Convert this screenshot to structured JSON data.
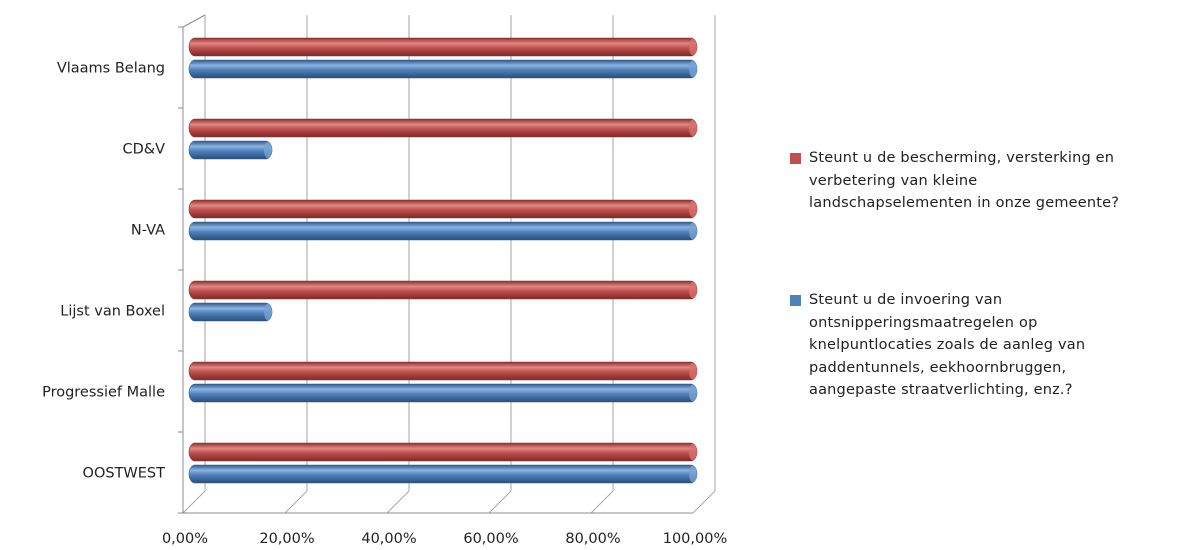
{
  "chart_data": {
    "type": "bar",
    "orientation": "horizontal",
    "categories": [
      "Vlaams Belang",
      "CD&V",
      "N-VA",
      "Lijst van Boxel",
      "Progressief Malle",
      "OOSTWEST"
    ],
    "series": [
      {
        "name": "Steunt u de bescherming, versterking en verbetering van kleine landschapselementen in onze gemeente?",
        "color": "#c0504d",
        "values": [
          100,
          100,
          100,
          100,
          100,
          100
        ]
      },
      {
        "name": "Steunt u de invoering van ontsnipperingsmaatregelen op knelpuntlocaties zoals de aanleg van paddentunnels, eekhoornbruggen, aangepaste straatverlichting, enz.?",
        "color": "#4f81bd",
        "values": [
          100,
          16.67,
          100,
          16.67,
          100,
          100
        ]
      }
    ],
    "xlim": [
      0,
      100
    ],
    "x_ticks": [
      0,
      20,
      40,
      60,
      80,
      100
    ],
    "x_tick_labels": [
      "0,00%",
      "20,00%",
      "40,00%",
      "60,00%",
      "80,00%",
      "100,00%"
    ],
    "gridlines": true,
    "legend_position": "right",
    "style": "3d-cylinder"
  },
  "legend": {
    "items": [
      {
        "lines": [
          "Steunt u de bescherming, versterking en",
          "verbetering van kleine",
          "landschapselementen in onze gemeente?"
        ],
        "color": "#c0504d"
      },
      {
        "lines": [
          "Steunt u de invoering van",
          "ontsnipperingsmaatregelen op",
          "knelpuntlocaties zoals de aanleg van",
          "paddentunnels, eekhoornbruggen,",
          "aangepaste straatverlichting, enz.?"
        ],
        "color": "#4f81bd"
      }
    ]
  }
}
